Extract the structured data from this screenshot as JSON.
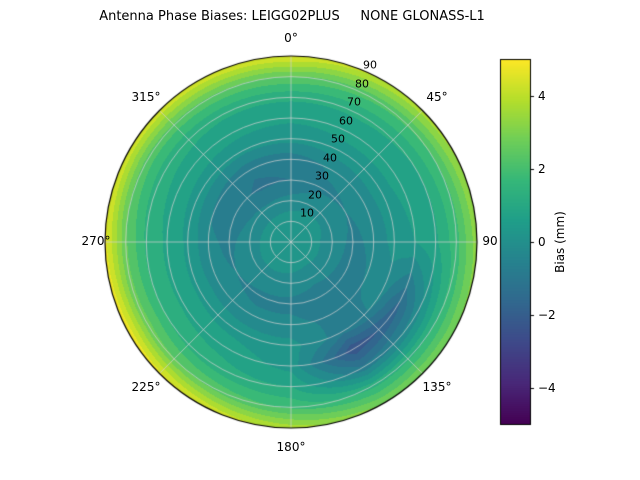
{
  "chart_data": {
    "type": "heatmap",
    "projection": "polar",
    "title": "Antenna Phase Biases: LEIGG02PLUS     NONE GLONASS-L1",
    "theta_labels": [
      "0°",
      "45°",
      "90",
      "135°",
      "180°",
      "225°",
      "270°",
      "315°"
    ],
    "r_labels": [
      "10",
      "20",
      "30",
      "40",
      "50",
      "60",
      "70",
      "80",
      "90"
    ],
    "r_max": 90,
    "grid": {
      "on": true,
      "color": "#d2d2d2",
      "theta_step_deg": 45,
      "r_step": 10
    },
    "colorbar": {
      "label": "Bias (mm)",
      "ticks": [
        "4",
        "2",
        "0",
        "−2",
        "−4"
      ],
      "tick_values": [
        4,
        2,
        0,
        -2,
        -4
      ],
      "vmin": -5,
      "vmax": 5,
      "colormap": "viridis",
      "colormap_stops": [
        "#440154",
        "#482878",
        "#3e4989",
        "#31688e",
        "#26828e",
        "#1f9e89",
        "#35b779",
        "#6ece58",
        "#b5de2b",
        "#fde725"
      ],
      "level_step_mm": 0.5
    },
    "azimuths_deg": [
      0,
      30,
      60,
      90,
      120,
      150,
      180,
      210,
      240,
      270,
      300,
      330,
      360
    ],
    "zeniths_deg": [
      0,
      10,
      20,
      30,
      40,
      50,
      60,
      70,
      80,
      90
    ],
    "bias_mm": [
      [
        0.4,
        0.3,
        -0.3,
        -1.0,
        -0.8,
        0.2,
        0.6,
        1.1,
        2.5,
        4.6
      ],
      [
        0.4,
        0.3,
        -0.2,
        -0.6,
        -0.4,
        0.3,
        0.7,
        1.1,
        2.2,
        4.0
      ],
      [
        0.4,
        0.3,
        -0.2,
        -0.5,
        -0.3,
        0.3,
        0.7,
        1.0,
        2.0,
        3.6
      ],
      [
        0.4,
        0.2,
        -0.3,
        -0.6,
        -0.4,
        0.2,
        0.5,
        0.9,
        1.8,
        3.3
      ],
      [
        0.4,
        0.2,
        -0.3,
        -0.7,
        -0.5,
        -0.3,
        -1.6,
        -0.2,
        1.5,
        3.0
      ],
      [
        0.4,
        0.2,
        -0.4,
        -0.7,
        -0.6,
        -0.8,
        -2.4,
        -0.9,
        1.3,
        3.0
      ],
      [
        0.4,
        0.3,
        -0.3,
        -0.6,
        -0.4,
        0.2,
        0.3,
        1.0,
        1.9,
        3.8
      ],
      [
        0.4,
        0.3,
        -0.2,
        -0.6,
        -0.4,
        0.3,
        0.8,
        1.2,
        2.4,
        4.5
      ],
      [
        0.4,
        0.3,
        -0.2,
        -0.5,
        -0.3,
        0.4,
        0.9,
        1.5,
        2.7,
        4.9
      ],
      [
        0.4,
        0.3,
        -0.3,
        -0.6,
        -0.4,
        0.4,
        0.9,
        1.4,
        2.6,
        4.7
      ],
      [
        0.4,
        0.3,
        -0.4,
        -0.8,
        -0.6,
        0.3,
        0.8,
        1.2,
        2.3,
        4.4
      ],
      [
        0.4,
        0.3,
        -0.4,
        -1.1,
        -0.9,
        0.2,
        0.7,
        1.1,
        2.4,
        4.4
      ],
      [
        0.4,
        0.3,
        -0.3,
        -1.0,
        -0.8,
        0.2,
        0.6,
        1.1,
        2.5,
        4.6
      ]
    ]
  }
}
